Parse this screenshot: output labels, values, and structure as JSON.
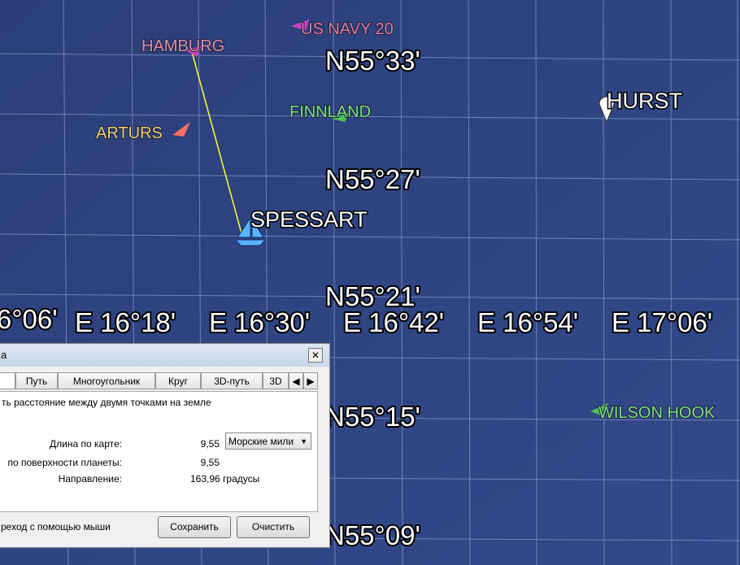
{
  "map": {
    "placemarks": [
      "US NAVY 20",
      "HAMBURG",
      "FINNLAND",
      "HURST",
      "ARTURS",
      "SPESSART",
      "WILSON HOOK"
    ],
    "latitudes": [
      "N55°33'",
      "N55°27'",
      "N55°21'",
      "N55°15'",
      "N55°09'"
    ],
    "longitudes": [
      "6°06'",
      "E 16°18'",
      "E 16°30'",
      "E 16°42'",
      "E 16°54'",
      "E 17°06'"
    ]
  },
  "dialog": {
    "title": "а",
    "tabs": [
      "Путь",
      "Многоугольник",
      "Круг",
      "3D-путь",
      "3D"
    ],
    "description": "ть расстояние между двумя точками на земле",
    "rows": [
      {
        "label": "Длина по карте:",
        "value": "9,55",
        "unit": "Морские мили"
      },
      {
        "label": "по поверхности планеты:",
        "value": "9,55"
      },
      {
        "label": "Направление:",
        "value": "163,96 градусы"
      }
    ],
    "mouse_option": "реход с помощью мыши",
    "buttons": [
      "Сохранить",
      "Очистить"
    ]
  }
}
